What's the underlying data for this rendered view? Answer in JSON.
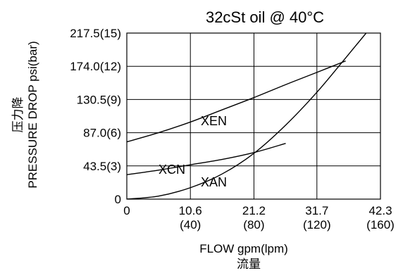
{
  "chart_data": {
    "type": "line",
    "title": "32cSt  oil @ 40°C",
    "xlabel": "FLOW gpm(lpm)",
    "xlabel_cn": "流量",
    "ylabel": "PRESSURE DROP psi(bar)",
    "ylabel_cn": "压力降",
    "xlim": [
      0,
      42.3
    ],
    "ylim": [
      0,
      217.5
    ],
    "grid": true,
    "x_ticks": [
      {
        "value": 0,
        "label": "0",
        "sublabel": ""
      },
      {
        "value": 10.6,
        "label": "10.6",
        "sublabel": "(40)"
      },
      {
        "value": 21.2,
        "label": "21.2",
        "sublabel": "(80)"
      },
      {
        "value": 31.7,
        "label": "31.7",
        "sublabel": "(120)"
      },
      {
        "value": 42.3,
        "label": "42.3",
        "sublabel": "(160)"
      }
    ],
    "y_ticks": [
      {
        "value": 0,
        "label": "0"
      },
      {
        "value": 43.5,
        "label": "43.5(3)"
      },
      {
        "value": 87.0,
        "label": "87.0(6)"
      },
      {
        "value": 130.5,
        "label": "130.5(9)"
      },
      {
        "value": 174.0,
        "label": "174.0(12)"
      },
      {
        "value": 217.5,
        "label": "217.5(15)"
      }
    ],
    "series": [
      {
        "name": "XEN",
        "x": [
          0,
          5.3,
          10.6,
          15.9,
          21.2,
          26.5,
          31.7,
          36.5
        ],
        "y": [
          75,
          87,
          101,
          117,
          133,
          150,
          166,
          181
        ]
      },
      {
        "name": "XCN",
        "x": [
          0,
          5.3,
          10.6,
          15.9,
          21.2,
          26.5
        ],
        "y": [
          32,
          38,
          45,
          52,
          61,
          73
        ]
      },
      {
        "name": "XAN",
        "x": [
          0,
          5.3,
          10.6,
          15.9,
          21.2,
          26.5,
          31.7,
          36.5,
          40.7
        ],
        "y": [
          0,
          4,
          15,
          33,
          60,
          97,
          140,
          185,
          225
        ]
      }
    ]
  }
}
